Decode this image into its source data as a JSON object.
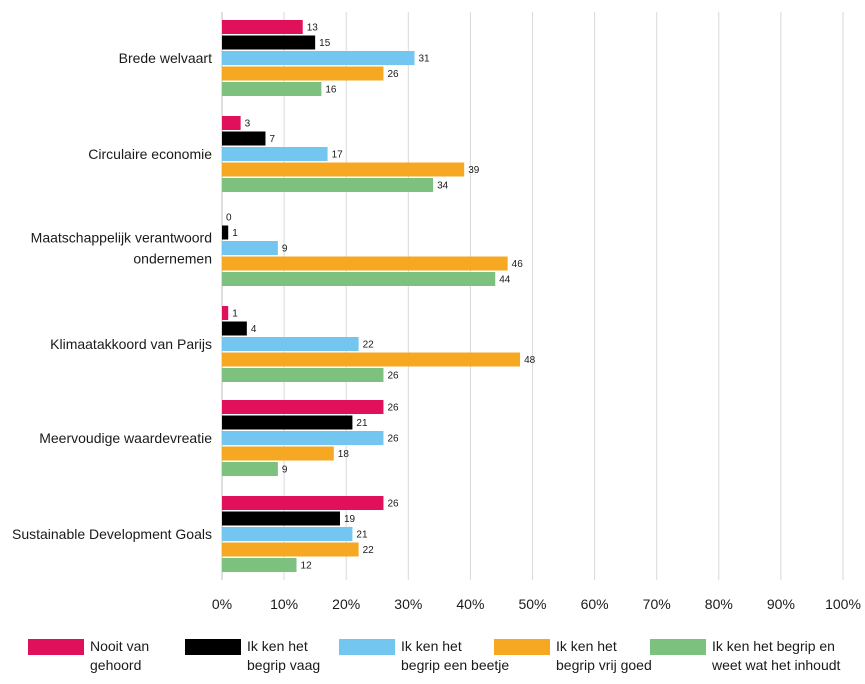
{
  "chart_data": {
    "type": "bar",
    "orientation": "horizontal",
    "categories": [
      "Brede welvaart",
      "Circulaire economie",
      "Maatschappelijk verantwoord\nondernemen",
      "Klimaatakkoord van Parijs",
      "Meervoudige waardevreatie",
      "Sustainable Development Goals"
    ],
    "series": [
      {
        "name": "Nooit van\ngehoord",
        "color": "#e0105a",
        "values": [
          13,
          3,
          0,
          1,
          26,
          26
        ]
      },
      {
        "name": "Ik ken het\nbegrip vaag",
        "color": "#000000",
        "values": [
          15,
          7,
          1,
          4,
          21,
          19
        ]
      },
      {
        "name": "Ik ken het\nbegrip een beetje",
        "color": "#73c6f0",
        "values": [
          31,
          17,
          9,
          22,
          26,
          21
        ]
      },
      {
        "name": "Ik ken het\nbegrip vrij goed",
        "color": "#f7a823",
        "values": [
          26,
          39,
          46,
          48,
          18,
          22
        ]
      },
      {
        "name": "Ik ken het begrip en\nweet wat het inhoudt",
        "color": "#7cc17d",
        "values": [
          16,
          34,
          44,
          26,
          9,
          12
        ]
      }
    ],
    "xlim": [
      0,
      100
    ],
    "xticks": [
      "0%",
      "10%",
      "20%",
      "30%",
      "40%",
      "50%",
      "60%",
      "70%",
      "80%",
      "90%",
      "100%"
    ],
    "grid": true,
    "legend_position": "bottom"
  }
}
